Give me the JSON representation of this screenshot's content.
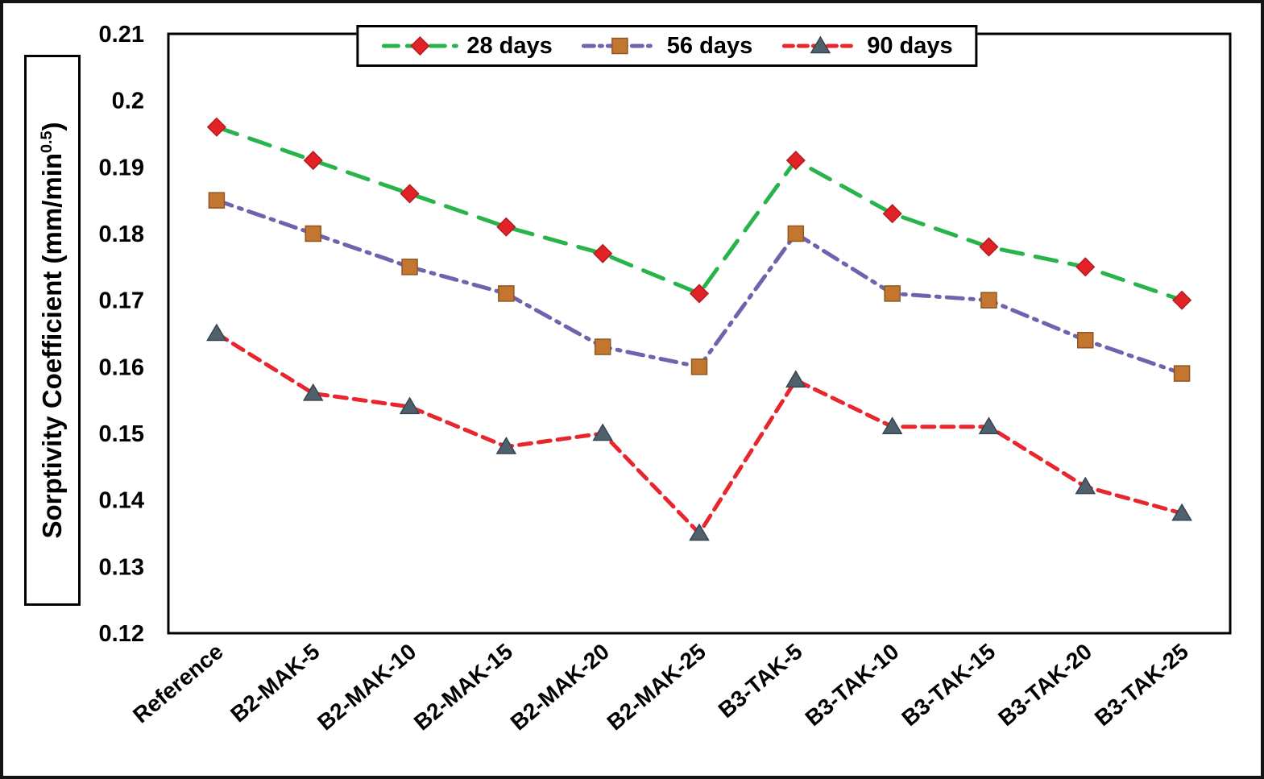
{
  "chart_data": {
    "type": "line",
    "title": "",
    "ylabel_parts": {
      "main": "Sorptivity Coefficient (mm/min",
      "sup": "0.5",
      "end": ")"
    },
    "xlabel": "",
    "grid": false,
    "legend_position": "top-center",
    "ylim": [
      0.12,
      0.21
    ],
    "ytick_values": [
      0.12,
      0.13,
      0.14,
      0.15,
      0.16,
      0.17,
      0.18,
      0.19,
      0.2,
      0.21
    ],
    "ytick_labels": [
      "0.12",
      "0.13",
      "0.14",
      "0.15",
      "0.16",
      "0.17",
      "0.18",
      "0.19",
      "0.2",
      "0.21"
    ],
    "categories": [
      "Reference",
      "B2-MAK-5",
      "B2-MAK-10",
      "B2-MAK-15",
      "B2-MAK-20",
      "B2-MAK-25",
      "B3-TAK-5",
      "B3-TAK-10",
      "B3-TAK-15",
      "B3-TAK-20",
      "B3-TAK-25"
    ],
    "series": [
      {
        "name": "28 days",
        "line_color": "#28b44b",
        "dash": "long-dash",
        "marker": "diamond",
        "marker_color": "#e32227",
        "marker_edge": "#b21c21",
        "values": [
          0.196,
          0.191,
          0.186,
          0.181,
          0.177,
          0.171,
          0.191,
          0.183,
          0.178,
          0.175,
          0.17
        ]
      },
      {
        "name": "56 days",
        "line_color": "#6f63ad",
        "dash": "dash-dot",
        "marker": "square",
        "marker_color": "#c3762f",
        "marker_edge": "#8f5622",
        "values": [
          0.185,
          0.18,
          0.175,
          0.171,
          0.163,
          0.16,
          0.18,
          0.171,
          0.17,
          0.164,
          0.159
        ]
      },
      {
        "name": "90 days",
        "line_color": "#e8262d",
        "dash": "dash",
        "marker": "triangle",
        "marker_color": "#50616e",
        "marker_edge": "#37434d",
        "values": [
          0.165,
          0.156,
          0.154,
          0.148,
          0.15,
          0.135,
          0.158,
          0.151,
          0.151,
          0.142,
          0.138
        ]
      }
    ]
  }
}
